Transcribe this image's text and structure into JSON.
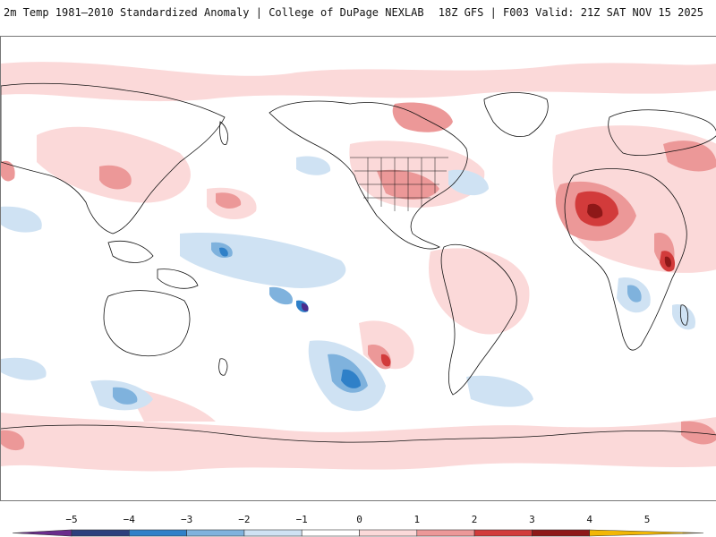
{
  "header": {
    "left_title": "2m Temp 1981–2010 Standardized Anomaly | College of DuPage NEXLAB",
    "right_title": "18Z GFS | F003 Valid: 21Z SAT NOV 15 2025"
  },
  "legend": {
    "ticks": [
      "−5",
      "−4",
      "−3",
      "−2",
      "−1",
      "0",
      "1",
      "2",
      "3",
      "4",
      "5"
    ],
    "bins": [
      {
        "color": "#6a2c8c"
      },
      {
        "color": "#2b3f7d"
      },
      {
        "color": "#2f80c8"
      },
      {
        "color": "#7fb2dd"
      },
      {
        "color": "#cfe2f3"
      },
      {
        "color": "#ffffff"
      },
      {
        "color": "#fbd9d9"
      },
      {
        "color": "#ec9898"
      },
      {
        "color": "#d23b3b"
      },
      {
        "color": "#8e1818"
      },
      {
        "color": "#f2b705"
      }
    ]
  },
  "colors": {
    "warm_light": "#fbd9d9",
    "warm_mid": "#ec9898",
    "warm_strong": "#d23b3b",
    "warm_extreme": "#8e1818",
    "cold_light": "#cfe2f3",
    "cold_mid": "#7fb2dd",
    "cold_strong": "#2f80c8",
    "cold_extreme": "#4b2c8c",
    "coastline": "#111111"
  }
}
